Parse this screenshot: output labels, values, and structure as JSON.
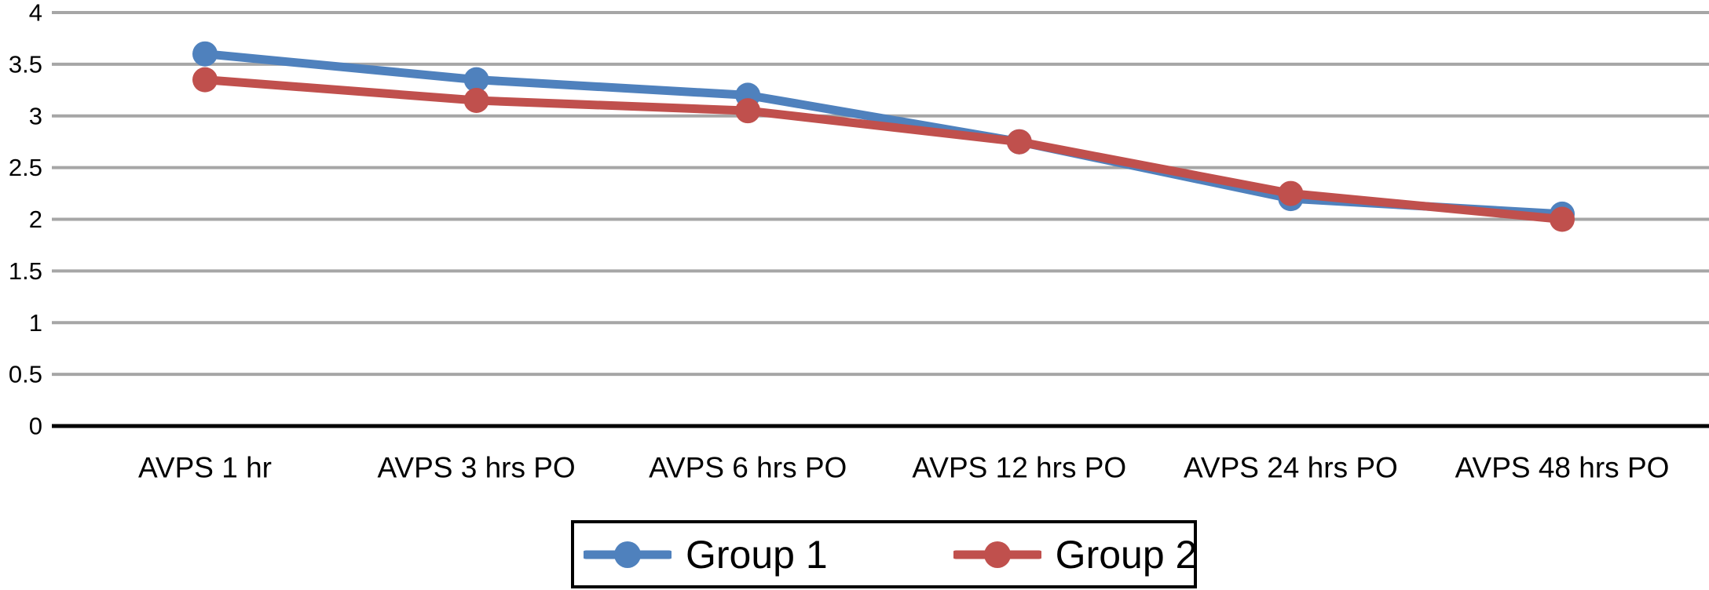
{
  "chart_data": {
    "type": "line",
    "title": "",
    "xlabel": "",
    "ylabel": "",
    "categories": [
      "AVPS 1 hr",
      "AVPS 3 hrs PO",
      "AVPS 6 hrs PO",
      "AVPS 12 hrs PO",
      "AVPS 24 hrs PO",
      "AVPS 48 hrs PO"
    ],
    "series": [
      {
        "name": "Group 1",
        "color": "#4F81BD",
        "values": [
          3.6,
          3.35,
          3.2,
          2.75,
          2.2,
          2.05
        ]
      },
      {
        "name": "Group 2",
        "color": "#C0504D",
        "values": [
          3.35,
          3.15,
          3.05,
          2.75,
          2.25,
          2.0
        ]
      }
    ],
    "ylim": [
      0,
      4
    ],
    "y_tick_step": 0.5,
    "y_tick_labels": [
      "0",
      "0.5",
      "1",
      "1.5",
      "2",
      "2.5",
      "3",
      "3.5",
      "4"
    ],
    "grid": true,
    "legend_position": "bottom-center",
    "colors": {
      "gridline": "#A6A6A6",
      "axis": "#000000",
      "text": "#000000",
      "legend_border": "#000000",
      "background": "#FFFFFF"
    }
  }
}
